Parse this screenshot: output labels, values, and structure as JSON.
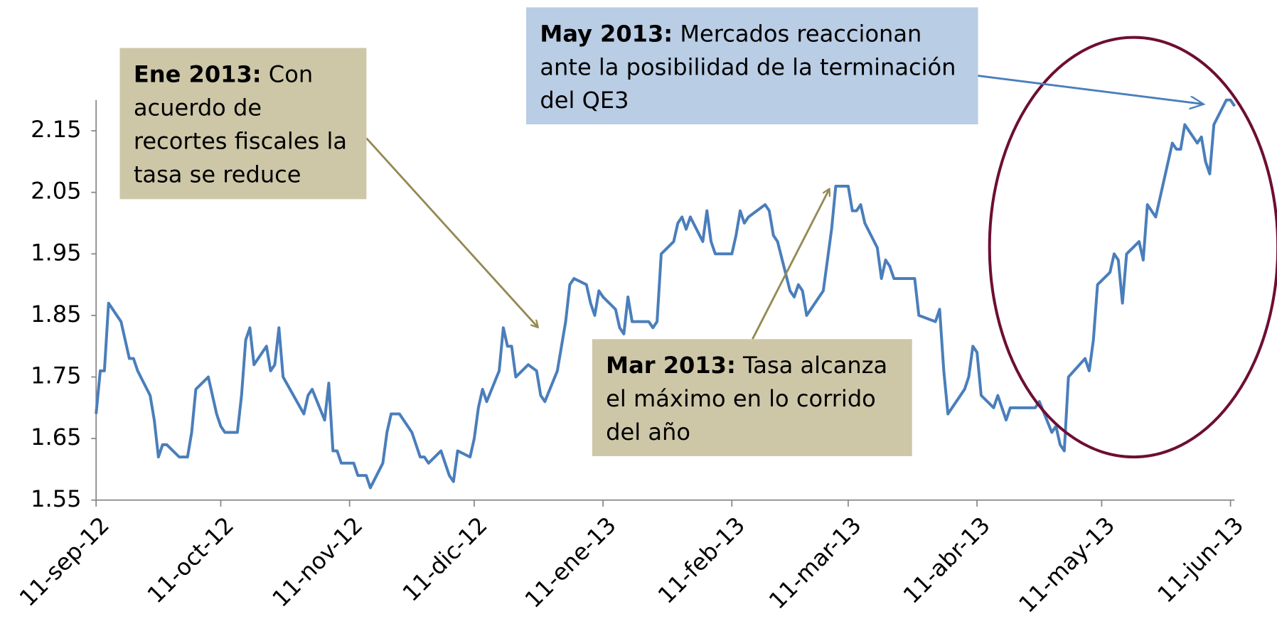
{
  "chart_data": {
    "type": "line",
    "x": [
      "2012-09-11",
      "2012-09-12",
      "2012-09-13",
      "2012-09-14",
      "2012-09-17",
      "2012-09-19",
      "2012-09-20",
      "2012-09-21",
      "2012-09-24",
      "2012-09-25",
      "2012-09-26",
      "2012-09-27",
      "2012-09-28",
      "2012-10-01",
      "2012-10-03",
      "2012-10-04",
      "2012-10-05",
      "2012-10-08",
      "2012-10-10",
      "2012-10-11",
      "2012-10-12",
      "2012-10-15",
      "2012-10-16",
      "2012-10-17",
      "2012-10-18",
      "2012-10-19",
      "2012-10-22",
      "2012-10-23",
      "2012-10-24",
      "2012-10-25",
      "2012-10-26",
      "2012-10-31",
      "2012-11-01",
      "2012-11-02",
      "2012-11-05",
      "2012-11-06",
      "2012-11-07",
      "2012-11-08",
      "2012-11-09",
      "2012-11-12",
      "2012-11-13",
      "2012-11-15",
      "2012-11-16",
      "2012-11-19",
      "2012-11-20",
      "2012-11-21",
      "2012-11-23",
      "2012-11-26",
      "2012-11-28",
      "2012-11-29",
      "2012-11-30",
      "2012-12-03",
      "2012-12-05",
      "2012-12-06",
      "2012-12-07",
      "2012-12-10",
      "2012-12-11",
      "2012-12-12",
      "2012-12-13",
      "2012-12-14",
      "2012-12-17",
      "2012-12-18",
      "2012-12-19",
      "2012-12-20",
      "2012-12-21",
      "2012-12-24",
      "2012-12-26",
      "2012-12-27",
      "2012-12-28",
      "2012-12-31",
      "2013-01-02",
      "2013-01-03",
      "2013-01-04",
      "2013-01-07",
      "2013-01-08",
      "2013-01-09",
      "2013-01-10",
      "2013-01-11",
      "2013-01-14",
      "2013-01-15",
      "2013-01-16",
      "2013-01-17",
      "2013-01-18",
      "2013-01-22",
      "2013-01-23",
      "2013-01-24",
      "2013-01-25",
      "2013-01-28",
      "2013-01-29",
      "2013-01-30",
      "2013-01-31",
      "2013-02-01",
      "2013-02-04",
      "2013-02-05",
      "2013-02-06",
      "2013-02-07",
      "2013-02-11",
      "2013-02-12",
      "2013-02-13",
      "2013-02-14",
      "2013-02-15",
      "2013-02-19",
      "2013-02-20",
      "2013-02-21",
      "2013-02-22",
      "2013-02-25",
      "2013-02-26",
      "2013-02-27",
      "2013-02-28",
      "2013-03-01",
      "2013-03-05",
      "2013-03-07",
      "2013-03-08",
      "2013-03-11",
      "2013-03-12",
      "2013-03-13",
      "2013-03-14",
      "2013-03-15",
      "2013-03-18",
      "2013-03-19",
      "2013-03-20",
      "2013-03-21",
      "2013-03-22",
      "2013-03-27",
      "2013-03-28",
      "2013-04-01",
      "2013-04-02",
      "2013-04-03",
      "2013-04-04",
      "2013-04-08",
      "2013-04-09",
      "2013-04-10",
      "2013-04-11",
      "2013-04-12",
      "2013-04-15",
      "2013-04-16",
      "2013-04-17",
      "2013-04-18",
      "2013-04-19",
      "2013-04-25",
      "2013-04-26",
      "2013-04-29",
      "2013-04-30",
      "2013-05-01",
      "2013-05-02",
      "2013-05-03",
      "2013-05-07",
      "2013-05-08",
      "2013-05-09",
      "2013-05-10",
      "2013-05-13",
      "2013-05-14",
      "2013-05-15",
      "2013-05-16",
      "2013-05-17",
      "2013-05-20",
      "2013-05-21",
      "2013-05-22",
      "2013-05-24",
      "2013-05-28",
      "2013-05-29",
      "2013-05-30",
      "2013-05-31",
      "2013-06-03",
      "2013-06-04",
      "2013-06-05",
      "2013-06-06",
      "2013-06-07",
      "2013-06-10",
      "2013-06-11",
      "2013-06-12"
    ],
    "series": [
      {
        "color": "#4a7ebb",
        "values": [
          1.69,
          1.76,
          1.76,
          1.87,
          1.84,
          1.78,
          1.78,
          1.76,
          1.72,
          1.68,
          1.62,
          1.64,
          1.64,
          1.62,
          1.62,
          1.66,
          1.73,
          1.75,
          1.69,
          1.67,
          1.66,
          1.66,
          1.72,
          1.81,
          1.83,
          1.77,
          1.8,
          1.76,
          1.77,
          1.83,
          1.75,
          1.69,
          1.72,
          1.73,
          1.68,
          1.74,
          1.63,
          1.63,
          1.61,
          1.61,
          1.59,
          1.59,
          1.57,
          1.61,
          1.66,
          1.69,
          1.69,
          1.66,
          1.62,
          1.62,
          1.61,
          1.63,
          1.59,
          1.58,
          1.63,
          1.62,
          1.65,
          1.7,
          1.73,
          1.71,
          1.76,
          1.83,
          1.8,
          1.8,
          1.75,
          1.77,
          1.76,
          1.72,
          1.71,
          1.76,
          1.84,
          1.9,
          1.91,
          1.9,
          1.87,
          1.85,
          1.89,
          1.88,
          1.86,
          1.83,
          1.82,
          1.88,
          1.84,
          1.84,
          1.83,
          1.84,
          1.95,
          1.97,
          2.0,
          2.01,
          1.99,
          2.01,
          1.97,
          2.02,
          1.97,
          1.95,
          1.95,
          1.98,
          2.02,
          2.0,
          2.01,
          2.03,
          2.02,
          1.98,
          1.97,
          1.89,
          1.88,
          1.9,
          1.89,
          1.85,
          1.89,
          1.99,
          2.06,
          2.06,
          2.02,
          2.02,
          2.03,
          2.0,
          1.96,
          1.91,
          1.94,
          1.93,
          1.91,
          1.91,
          1.85,
          1.84,
          1.86,
          1.76,
          1.69,
          1.73,
          1.75,
          1.8,
          1.79,
          1.72,
          1.7,
          1.72,
          1.7,
          1.68,
          1.7,
          1.7,
          1.71,
          1.66,
          1.67,
          1.64,
          1.63,
          1.75,
          1.78,
          1.76,
          1.81,
          1.9,
          1.92,
          1.95,
          1.94,
          1.87,
          1.95,
          1.97,
          1.94,
          2.03,
          2.01,
          2.13,
          2.12,
          2.12,
          2.16,
          2.13,
          2.14,
          2.1,
          2.08,
          2.16,
          2.2,
          2.2,
          2.19
        ]
      }
    ],
    "xlim": [
      "2012-09-11",
      "2013-06-12"
    ],
    "xticks": [
      {
        "value": "2012-09-11",
        "label": "11-sep-12"
      },
      {
        "value": "2012-10-11",
        "label": "11-oct-12"
      },
      {
        "value": "2012-11-11",
        "label": "11-nov-12"
      },
      {
        "value": "2012-12-11",
        "label": "11-dic-12"
      },
      {
        "value": "2013-01-11",
        "label": "11-ene-13"
      },
      {
        "value": "2013-02-11",
        "label": "11-feb-13"
      },
      {
        "value": "2013-03-11",
        "label": "11-mar-13"
      },
      {
        "value": "2013-04-11",
        "label": "11-abr-13"
      },
      {
        "value": "2013-05-11",
        "label": "11-may-13"
      },
      {
        "value": "2013-06-11",
        "label": "11-jun-13"
      }
    ],
    "ylim": [
      1.55,
      2.2
    ],
    "yticks": [
      1.55,
      1.65,
      1.75,
      1.85,
      1.95,
      2.05,
      2.15
    ],
    "annotations": [
      {
        "bold": "Ene 2013:",
        "text": "Con acuerdo de recortes fiscales la tasa se reduce"
      },
      {
        "bold": "May 2013:",
        "text": "Mercados reaccionan ante la posibilidad de la terminación del QE3"
      },
      {
        "bold": "Mar 2013:",
        "text": "Tasa alcanza el máximo en lo corrido del año"
      }
    ]
  }
}
